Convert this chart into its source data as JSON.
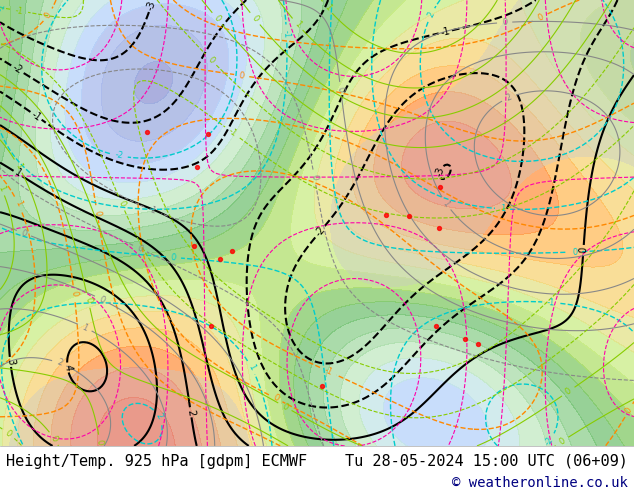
{
  "title_left": "Height/Temp. 925 hPa [gdpm] ECMWF",
  "title_right": "Tu 28-05-2024 15:00 UTC (06+09)",
  "copyright": "© weatheronline.co.uk",
  "bg_color": "#ffffff",
  "label_color": "#000080",
  "label_fontsize": 11,
  "copyright_fontsize": 10,
  "fig_width": 6.34,
  "fig_height": 4.9,
  "map_bg": "#e8e8e8",
  "bottom_bar_height": 0.09,
  "bottom_bar_color": "#ffffff"
}
